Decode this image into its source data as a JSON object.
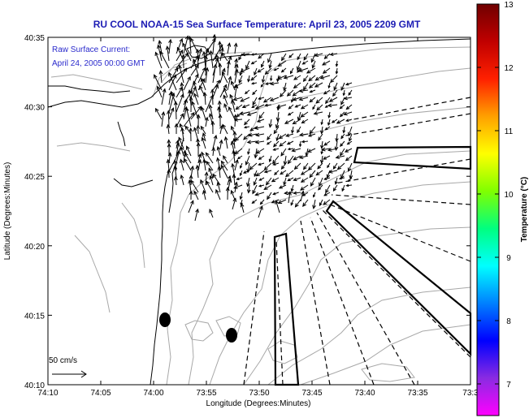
{
  "title": "RU COOL  NOAA-15  Sea Surface Temperature:  April 23, 2005 2209 GMT",
  "overlay": {
    "line1": "Raw Surface Current:",
    "line2": "April 24, 2005 00:00 GMT"
  },
  "scale_label": "50 cm/s",
  "axes": {
    "xlabel": "Longitude (Degrees:Minutes)",
    "ylabel": "Latitude (Degrees:Minutes)",
    "x_ticks": [
      "74:10",
      "74:05",
      "74:00",
      "73:55",
      "73:50",
      "73:45",
      "73:40",
      "73:35",
      "73:3"
    ],
    "y_ticks": [
      "40:35",
      "40:30",
      "40:25",
      "40:20",
      "40:15",
      "40:10"
    ]
  },
  "colorbar": {
    "label": "Temperature (°C)",
    "ticks": [
      "13",
      "12",
      "11",
      "10",
      "9",
      "8",
      "7"
    ],
    "min": 6.5,
    "max": 13,
    "colors": [
      "#ff00ff",
      "#8a2be2",
      "#0000ff",
      "#0080ff",
      "#00ffff",
      "#00ff80",
      "#80ff00",
      "#ffff00",
      "#ffa000",
      "#ff2000",
      "#c00000",
      "#700000"
    ]
  },
  "colors": {
    "title": "#1c1cb4",
    "overlay_text": "#2a2acc",
    "contour": "#a8a8a8",
    "coast": "#000000",
    "box": "#000000"
  }
}
